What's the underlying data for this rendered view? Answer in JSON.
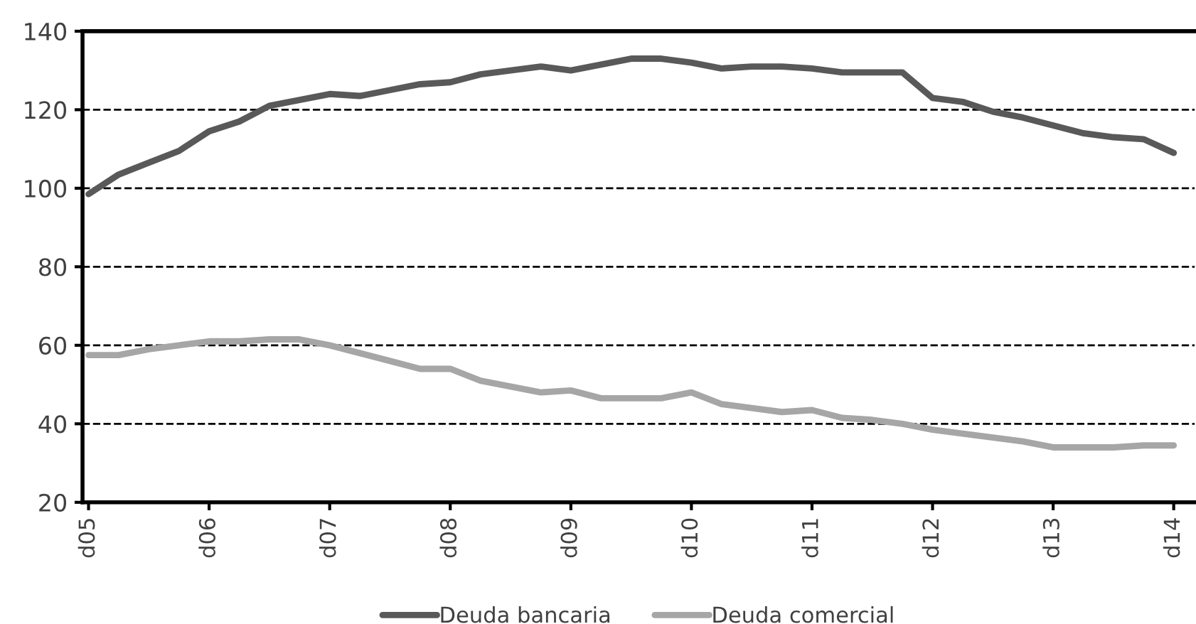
{
  "chart_data": {
    "type": "line",
    "categories": [
      "d05",
      null,
      null,
      null,
      "d06",
      null,
      null,
      null,
      "d07",
      null,
      null,
      null,
      "d08",
      null,
      null,
      null,
      "d09",
      null,
      null,
      null,
      "d10",
      null,
      null,
      null,
      "d11",
      null,
      null,
      null,
      "d12",
      null,
      null,
      null,
      "d13",
      null,
      null,
      null,
      "d14"
    ],
    "series": [
      {
        "name": "Deuda bancaria",
        "color": "#595959",
        "values": [
          98.5,
          103.5,
          106.5,
          109.5,
          114.5,
          117,
          121,
          122.5,
          124,
          123.5,
          125,
          126.5,
          127,
          129,
          130,
          131,
          130,
          131.5,
          133,
          133,
          132,
          130.5,
          131,
          131,
          130.5,
          129.5,
          129.5,
          129.5,
          123,
          122,
          119.5,
          118,
          116,
          114,
          113,
          112.5,
          109
        ]
      },
      {
        "name": "Deuda comercial",
        "color": "#a6a6a6",
        "values": [
          57.5,
          57.5,
          59,
          60,
          61,
          61,
          61.5,
          61.5,
          60,
          58,
          56,
          54,
          54,
          51,
          49.5,
          48,
          48.5,
          46.5,
          46.5,
          46.5,
          48,
          45,
          44,
          43,
          43.5,
          41.5,
          41,
          40,
          38.5,
          37.5,
          36.5,
          35.5,
          34,
          34,
          34,
          34.5,
          34.5
        ]
      }
    ],
    "ylim": [
      20,
      140
    ],
    "yticks": [
      20,
      40,
      60,
      80,
      100,
      120,
      140
    ],
    "grid": "y",
    "legend": "bottom",
    "marker": "none",
    "line_style": "solid"
  }
}
